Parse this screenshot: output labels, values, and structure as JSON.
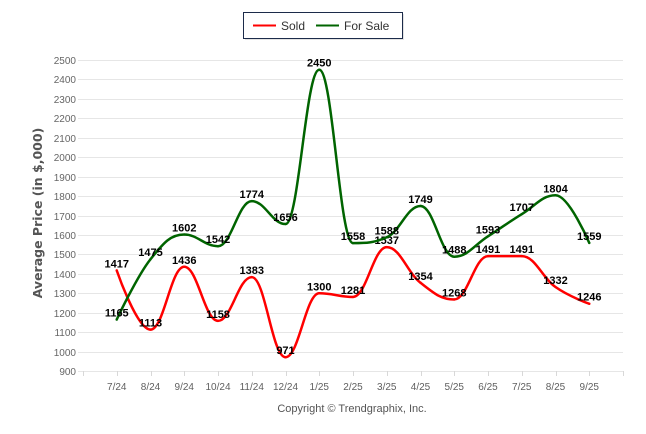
{
  "chart_data": {
    "type": "line",
    "title": "",
    "xlabel": "",
    "ylabel": "Average Price (in $,000)",
    "ylim": [
      900,
      2500
    ],
    "yticks": [
      900,
      1000,
      1100,
      1200,
      1300,
      1400,
      1500,
      1600,
      1700,
      1800,
      1900,
      2000,
      2100,
      2200,
      2300,
      2400,
      2500
    ],
    "categories": [
      "7/24",
      "8/24",
      "9/24",
      "10/24",
      "11/24",
      "12/24",
      "1/25",
      "2/25",
      "3/25",
      "4/25",
      "5/25",
      "6/25",
      "7/25",
      "8/25",
      "9/25"
    ],
    "series": [
      {
        "name": "Sold",
        "color": "#ff0000",
        "values": [
          1417,
          1113,
          1436,
          1158,
          1383,
          971,
          1300,
          1281,
          1537,
          1354,
          1268,
          1491,
          1491,
          1332,
          1246
        ]
      },
      {
        "name": "For Sale",
        "color": "#006400",
        "values": [
          1165,
          1475,
          1602,
          1542,
          1774,
          1656,
          2450,
          1558,
          1588,
          1749,
          1488,
          1593,
          1707,
          1804,
          1559
        ]
      }
    ],
    "legend_position": "top-center",
    "grid": true
  },
  "credits": "Copyright © Trendgraphix, Inc."
}
